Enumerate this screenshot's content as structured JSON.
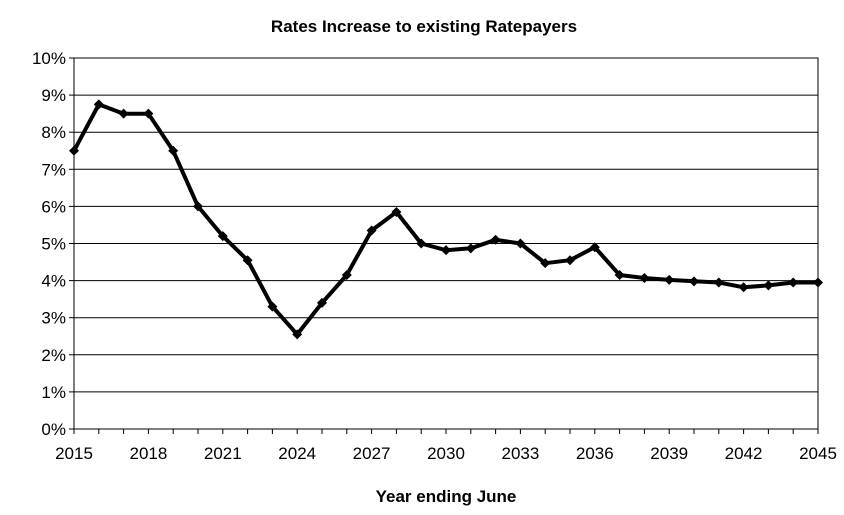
{
  "chart_data": {
    "type": "line",
    "title": "Rates Increase to existing Ratepayers",
    "xlabel": "Year ending June",
    "ylabel": "",
    "xlim": [
      2015,
      2045
    ],
    "ylim": [
      0,
      10
    ],
    "y_unit": "%",
    "x_ticks": [
      "2015",
      "2018",
      "2021",
      "2024",
      "2027",
      "2030",
      "2033",
      "2036",
      "2039",
      "2042",
      "2045"
    ],
    "y_ticks": [
      "0%",
      "1%",
      "2%",
      "3%",
      "4%",
      "5%",
      "6%",
      "7%",
      "8%",
      "9%",
      "10%"
    ],
    "grid": "horizontal",
    "legend": "none",
    "series": [
      {
        "color": "#000000",
        "marker": "diamond",
        "x": [
          2015,
          2016,
          2017,
          2018,
          2019,
          2020,
          2021,
          2022,
          2023,
          2024,
          2025,
          2026,
          2027,
          2028,
          2029,
          2030,
          2031,
          2032,
          2033,
          2034,
          2035,
          2036,
          2037,
          2038,
          2039,
          2040,
          2041,
          2042,
          2043,
          2044,
          2045
        ],
        "values": [
          7.5,
          8.75,
          8.5,
          8.5,
          7.5,
          6.0,
          5.2,
          4.55,
          3.3,
          2.55,
          3.4,
          4.15,
          5.35,
          5.85,
          5.0,
          4.82,
          4.87,
          5.1,
          5.0,
          4.47,
          4.55,
          4.9,
          4.15,
          4.07,
          4.02,
          3.98,
          3.95,
          3.82,
          3.87,
          3.95,
          3.95
        ]
      }
    ]
  }
}
